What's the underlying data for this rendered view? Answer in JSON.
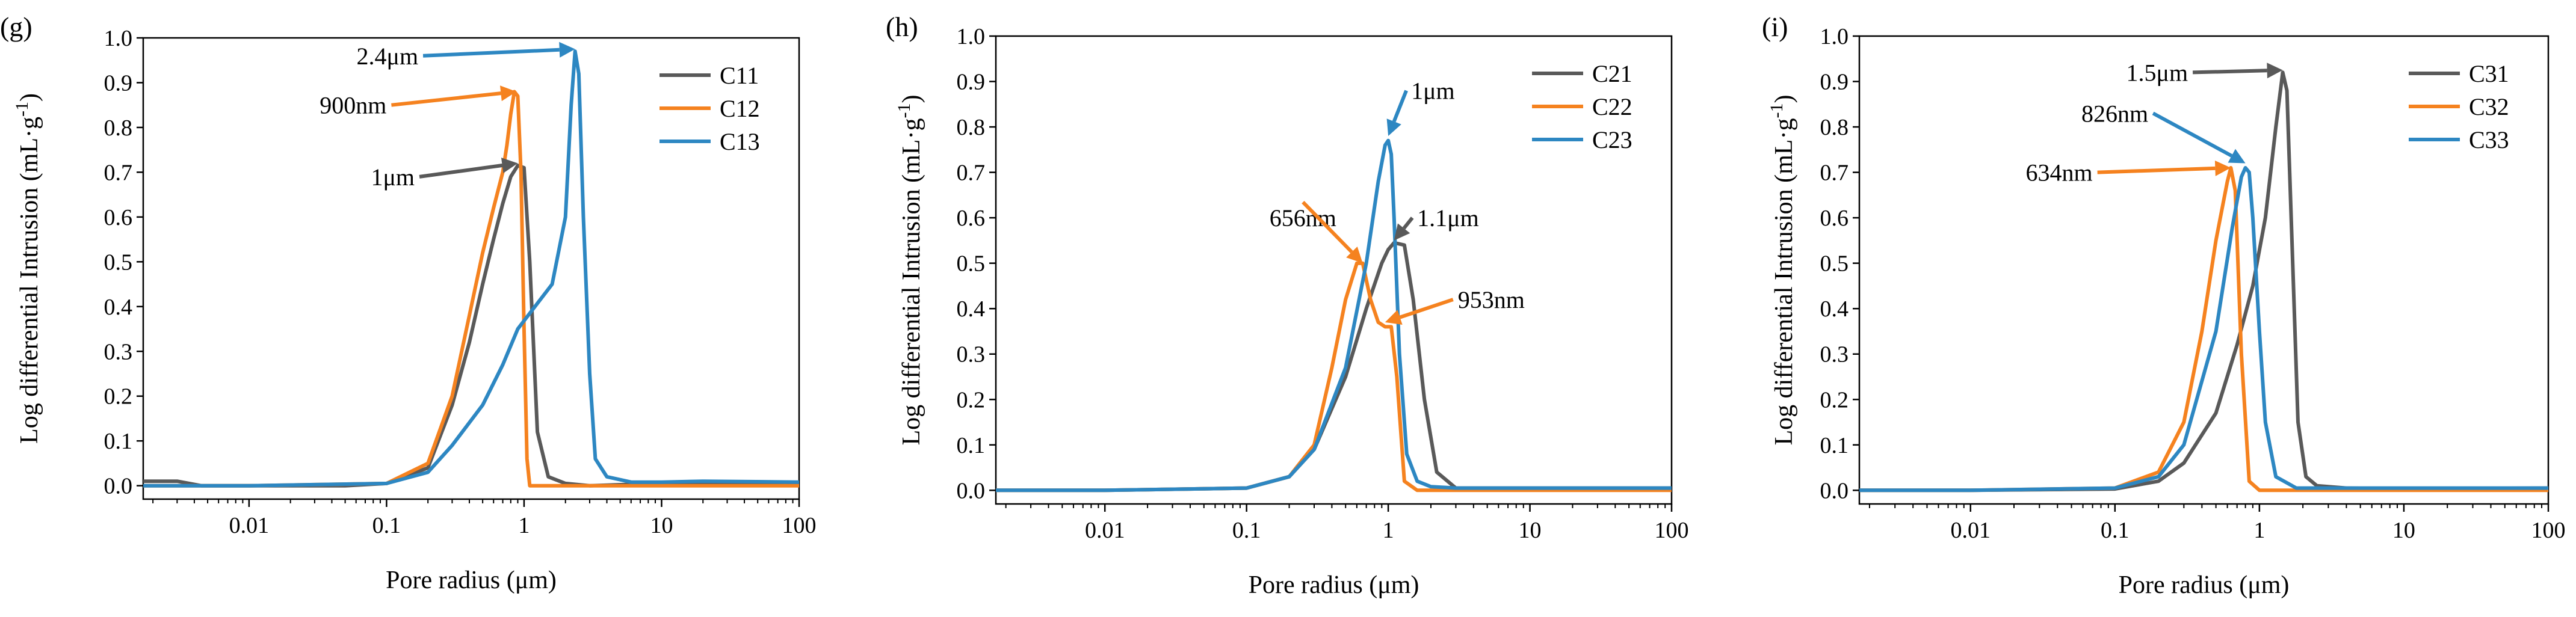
{
  "colors": {
    "gray": "#595959",
    "orange": "#F5821F",
    "blue": "#2D87C2",
    "axis": "#000000"
  },
  "chart_data": [
    {
      "type": "line",
      "panel_label": "(g)",
      "xlabel": "Pore radius (μm)",
      "ylabel_main": "Log differential Intrusion (mL·g",
      "ylabel_sup": "-1",
      "ylabel_close": ")",
      "xscale": "log",
      "xlim": [
        0.0017,
        100
      ],
      "ylim": [
        -0.03,
        1.0
      ],
      "xticks": [
        0.01,
        0.1,
        1,
        10,
        100
      ],
      "xtick_labels": [
        "0.01",
        "0.1",
        "1",
        "10",
        "100"
      ],
      "yticks": [
        0,
        0.1,
        0.2,
        0.3,
        0.4,
        0.5,
        0.6,
        0.7,
        0.8,
        0.9,
        1.0
      ],
      "ytick_labels": [
        "0.0",
        "0.1",
        "0.2",
        "0.3",
        "0.4",
        "0.5",
        "0.6",
        "0.7",
        "0.8",
        "0.9",
        "1.0"
      ],
      "legend_position": "top-right",
      "series": [
        {
          "name": "C11",
          "color": "#595959",
          "x": [
            0.0017,
            0.003,
            0.0045,
            0.01,
            0.05,
            0.1,
            0.2,
            0.3,
            0.4,
            0.5,
            0.6,
            0.7,
            0.8,
            0.9,
            1.0,
            1.1,
            1.25,
            1.5,
            2,
            3,
            10,
            100
          ],
          "y": [
            0.01,
            0.01,
            0.0,
            0.0,
            0.0,
            0.005,
            0.04,
            0.18,
            0.32,
            0.45,
            0.55,
            0.63,
            0.69,
            0.715,
            0.71,
            0.5,
            0.12,
            0.02,
            0.005,
            0.0,
            0.005,
            0.005
          ]
        },
        {
          "name": "C12",
          "color": "#F5821F",
          "x": [
            0.0017,
            0.01,
            0.1,
            0.2,
            0.3,
            0.4,
            0.5,
            0.6,
            0.7,
            0.75,
            0.8,
            0.85,
            0.9,
            0.95,
            1.0,
            1.05,
            1.1,
            1.3,
            2,
            10,
            100
          ],
          "y": [
            0.0,
            0.0,
            0.005,
            0.05,
            0.2,
            0.38,
            0.52,
            0.62,
            0.7,
            0.76,
            0.83,
            0.88,
            0.87,
            0.7,
            0.35,
            0.06,
            0.0,
            0.0,
            0.0,
            0.0,
            0.0
          ]
        },
        {
          "name": "C13",
          "color": "#2D87C2",
          "x": [
            0.0017,
            0.01,
            0.1,
            0.2,
            0.3,
            0.5,
            0.7,
            0.9,
            1.2,
            1.6,
            2.0,
            2.2,
            2.35,
            2.5,
            2.7,
            3.0,
            3.3,
            4,
            6,
            10,
            20,
            100
          ],
          "y": [
            0.0,
            0.0,
            0.005,
            0.03,
            0.09,
            0.18,
            0.27,
            0.35,
            0.4,
            0.45,
            0.6,
            0.85,
            0.97,
            0.92,
            0.6,
            0.25,
            0.06,
            0.02,
            0.008,
            0.008,
            0.01,
            0.008
          ]
        }
      ],
      "annotations": [
        {
          "text": "2.4μm",
          "color": "#2D87C2",
          "point": [
            2.35,
            0.975
          ],
          "text_at": [
            0.17,
            0.96
          ],
          "anchor": "end"
        },
        {
          "text": "900nm",
          "color": "#F5821F",
          "point": [
            0.88,
            0.88
          ],
          "text_at": [
            0.1,
            0.85
          ],
          "anchor": "end"
        },
        {
          "text": "1μm",
          "color": "#595959",
          "point": [
            0.9,
            0.72
          ],
          "text_at": [
            0.16,
            0.69
          ],
          "anchor": "end"
        }
      ]
    },
    {
      "type": "line",
      "panel_label": "(h)",
      "xlabel": "Pore radius (μm)",
      "ylabel_main": "Log differential Intrusion (mL·g",
      "ylabel_sup": "-1",
      "ylabel_close": ")",
      "xscale": "log",
      "xlim": [
        0.0017,
        100
      ],
      "ylim": [
        -0.03,
        1.0
      ],
      "xticks": [
        0.01,
        0.1,
        1,
        10,
        100
      ],
      "xtick_labels": [
        "0.01",
        "0.1",
        "1",
        "10",
        "100"
      ],
      "yticks": [
        0,
        0.1,
        0.2,
        0.3,
        0.4,
        0.5,
        0.6,
        0.7,
        0.8,
        0.9,
        1.0
      ],
      "ytick_labels": [
        "0.0",
        "0.1",
        "0.2",
        "0.3",
        "0.4",
        "0.5",
        "0.6",
        "0.7",
        "0.8",
        "0.9",
        "1.0"
      ],
      "legend_position": "top-right",
      "series": [
        {
          "name": "C21",
          "color": "#595959",
          "x": [
            0.0017,
            0.01,
            0.1,
            0.2,
            0.3,
            0.5,
            0.7,
            0.9,
            1.0,
            1.1,
            1.3,
            1.5,
            1.8,
            2.2,
            3,
            10,
            100
          ],
          "y": [
            0.0,
            0.0,
            0.005,
            0.03,
            0.09,
            0.25,
            0.4,
            0.5,
            0.53,
            0.545,
            0.54,
            0.42,
            0.2,
            0.04,
            0.005,
            0.005,
            0.005
          ]
        },
        {
          "name": "C22",
          "color": "#F5821F",
          "x": [
            0.0017,
            0.01,
            0.1,
            0.2,
            0.3,
            0.4,
            0.5,
            0.6,
            0.66,
            0.75,
            0.85,
            0.95,
            1.05,
            1.15,
            1.3,
            1.6,
            10,
            100
          ],
          "y": [
            0.0,
            0.0,
            0.005,
            0.03,
            0.1,
            0.27,
            0.42,
            0.5,
            0.5,
            0.42,
            0.37,
            0.36,
            0.36,
            0.25,
            0.02,
            0.0,
            0.0,
            0.0
          ]
        },
        {
          "name": "C23",
          "color": "#2D87C2",
          "x": [
            0.0017,
            0.01,
            0.1,
            0.2,
            0.3,
            0.5,
            0.7,
            0.85,
            0.95,
            1.0,
            1.05,
            1.1,
            1.2,
            1.35,
            1.6,
            2,
            3,
            10,
            100
          ],
          "y": [
            0.0,
            0.0,
            0.005,
            0.03,
            0.09,
            0.27,
            0.5,
            0.68,
            0.76,
            0.77,
            0.74,
            0.6,
            0.3,
            0.08,
            0.02,
            0.008,
            0.005,
            0.005,
            0.005
          ]
        }
      ],
      "annotations": [
        {
          "text": "1μm",
          "color": "#2D87C2",
          "point": [
            1.0,
            0.78
          ],
          "text_at": [
            1.45,
            0.88
          ],
          "anchor": "start"
        },
        {
          "text": "1.1μm",
          "color": "#595959",
          "point": [
            1.1,
            0.55
          ],
          "text_at": [
            1.6,
            0.6
          ],
          "anchor": "start"
        },
        {
          "text": "656nm",
          "color": "#F5821F",
          "point": [
            0.66,
            0.5
          ],
          "text_at": [
            0.25,
            0.6
          ],
          "anchor": "middle"
        },
        {
          "text": "953nm",
          "color": "#F5821F",
          "point": [
            0.95,
            0.37
          ],
          "text_at": [
            3.1,
            0.42
          ],
          "anchor": "start"
        }
      ]
    },
    {
      "type": "line",
      "panel_label": "(i)",
      "xlabel": "Pore radius (μm)",
      "ylabel_main": "Log differential Intrusion (mL·g",
      "ylabel_sup": "-1",
      "ylabel_close": ")",
      "xscale": "log",
      "xlim": [
        0.0017,
        100
      ],
      "ylim": [
        -0.03,
        1.0
      ],
      "xticks": [
        0.01,
        0.1,
        1,
        10,
        100
      ],
      "xtick_labels": [
        "0.01",
        "0.1",
        "1",
        "10",
        "100"
      ],
      "yticks": [
        0,
        0.1,
        0.2,
        0.3,
        0.4,
        0.5,
        0.6,
        0.7,
        0.8,
        0.9,
        1.0
      ],
      "ytick_labels": [
        "0.0",
        "0.1",
        "0.2",
        "0.3",
        "0.4",
        "0.5",
        "0.6",
        "0.7",
        "0.8",
        "0.9",
        "1.0"
      ],
      "legend_position": "top-right",
      "series": [
        {
          "name": "C31",
          "color": "#595959",
          "x": [
            0.0017,
            0.01,
            0.1,
            0.2,
            0.3,
            0.5,
            0.7,
            0.9,
            1.1,
            1.3,
            1.45,
            1.55,
            1.7,
            1.85,
            2.1,
            2.5,
            4,
            10,
            100
          ],
          "y": [
            0.0,
            0.0,
            0.003,
            0.02,
            0.06,
            0.17,
            0.32,
            0.45,
            0.6,
            0.8,
            0.92,
            0.88,
            0.5,
            0.15,
            0.03,
            0.01,
            0.005,
            0.003,
            0.005
          ]
        },
        {
          "name": "C32",
          "color": "#F5821F",
          "x": [
            0.0017,
            0.01,
            0.1,
            0.2,
            0.3,
            0.4,
            0.5,
            0.6,
            0.634,
            0.68,
            0.75,
            0.85,
            1.0,
            10,
            100
          ],
          "y": [
            0.0,
            0.0,
            0.005,
            0.04,
            0.15,
            0.35,
            0.55,
            0.68,
            0.71,
            0.66,
            0.3,
            0.02,
            0.0,
            0.0,
            0.0
          ]
        },
        {
          "name": "C33",
          "color": "#2D87C2",
          "x": [
            0.0017,
            0.01,
            0.1,
            0.2,
            0.3,
            0.5,
            0.65,
            0.75,
            0.8,
            0.85,
            0.9,
            1.0,
            1.1,
            1.3,
            1.8,
            10,
            100
          ],
          "y": [
            0.0,
            0.0,
            0.005,
            0.03,
            0.1,
            0.35,
            0.58,
            0.69,
            0.71,
            0.7,
            0.6,
            0.35,
            0.15,
            0.03,
            0.005,
            0.005,
            0.005
          ]
        }
      ],
      "annotations": [
        {
          "text": "1.5μm",
          "color": "#595959",
          "point": [
            1.45,
            0.925
          ],
          "text_at": [
            0.32,
            0.92
          ],
          "anchor": "end"
        },
        {
          "text": "826nm",
          "color": "#2D87C2",
          "point": [
            0.8,
            0.72
          ],
          "text_at": [
            0.17,
            0.83
          ],
          "anchor": "end"
        },
        {
          "text": "634nm",
          "color": "#F5821F",
          "point": [
            0.634,
            0.71
          ],
          "text_at": [
            0.07,
            0.7
          ],
          "anchor": "end"
        }
      ]
    }
  ]
}
